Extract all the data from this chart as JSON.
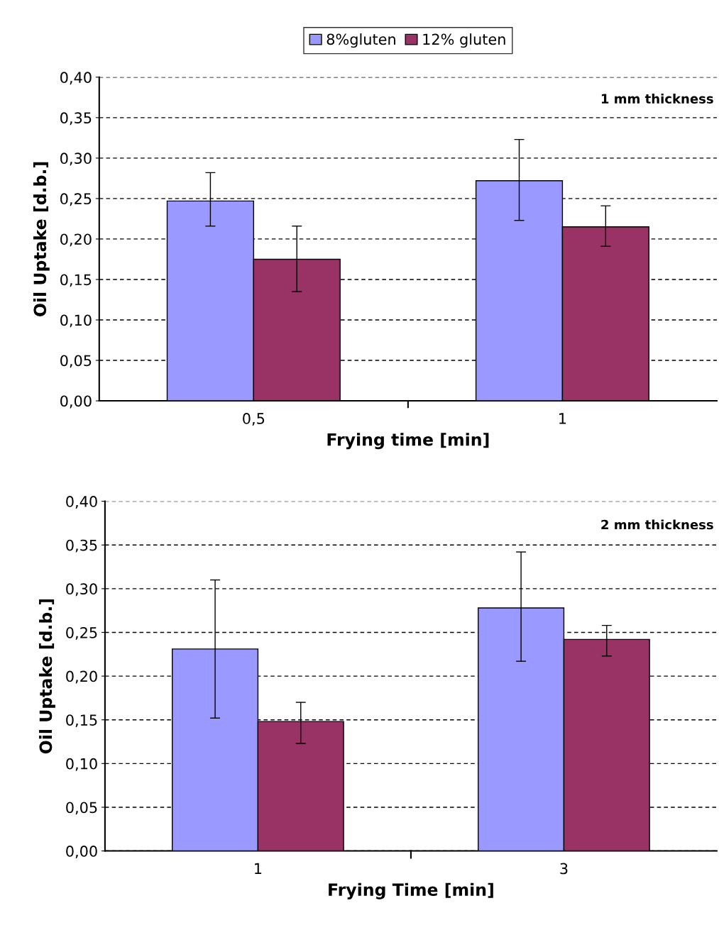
{
  "chart_data": [
    {
      "type": "bar",
      "categories": [
        "0,5",
        "1"
      ],
      "xlabel": "Frying time [min]",
      "ylabel": "Oil Uptake [d.b.]",
      "annotations": [
        "1 mm thickness"
      ],
      "series": [
        {
          "name": "8%gluten",
          "color": "#9999ff",
          "values": [
            0.247,
            0.272
          ],
          "errors": [
            [
              0.216,
              0.282
            ],
            [
              0.223,
              0.323
            ]
          ]
        },
        {
          "name": "12% gluten",
          "color": "#993366",
          "values": [
            0.175,
            0.215
          ],
          "errors": [
            [
              0.135,
              0.216
            ],
            [
              0.191,
              0.241
            ]
          ]
        }
      ],
      "ylim": [
        0,
        0.4
      ],
      "yticks": [
        {
          "value": 0,
          "label": "0,00"
        },
        {
          "value": 0.05,
          "label": "0,05"
        },
        {
          "value": 0.1,
          "label": "0,10"
        },
        {
          "value": 0.15,
          "label": "0,15"
        },
        {
          "value": 0.2,
          "label": "0,20"
        },
        {
          "value": 0.25,
          "label": "0,25"
        },
        {
          "value": 0.3,
          "label": "0,30"
        },
        {
          "value": 0.35,
          "label": "0,35"
        },
        {
          "value": 0.4,
          "label": "0,40"
        }
      ],
      "grid": "y",
      "legend": "top"
    },
    {
      "type": "bar",
      "categories": [
        "1",
        "3"
      ],
      "xlabel": "Frying Time [min]",
      "ylabel": "Oil Uptake [d.b.]",
      "annotations": [
        "2 mm thickness"
      ],
      "series": [
        {
          "color": "#9999ff",
          "values": [
            0.231,
            0.278
          ],
          "errors": [
            [
              0.152,
              0.31
            ],
            [
              0.217,
              0.342
            ]
          ]
        },
        {
          "color": "#993366",
          "values": [
            0.148,
            0.242
          ],
          "errors": [
            [
              0.123,
              0.17
            ],
            [
              0.223,
              0.258
            ]
          ]
        }
      ],
      "ylim": [
        0,
        0.4
      ],
      "yticks": [
        {
          "value": 0,
          "label": "0,00"
        },
        {
          "value": 0.05,
          "label": "0,05"
        },
        {
          "value": 0.1,
          "label": "0,10"
        },
        {
          "value": 0.15,
          "label": "0,15"
        },
        {
          "value": 0.2,
          "label": "0,20"
        },
        {
          "value": 0.25,
          "label": "0,25"
        },
        {
          "value": 0.3,
          "label": "0,30"
        },
        {
          "value": 0.35,
          "label": "0,35"
        },
        {
          "value": 0.4,
          "label": "0,40"
        }
      ],
      "grid": "y"
    }
  ]
}
